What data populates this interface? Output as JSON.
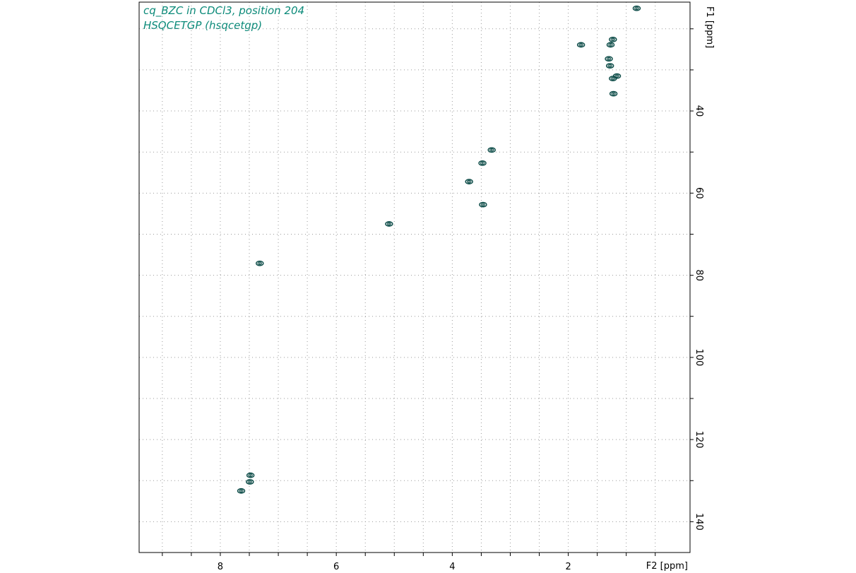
{
  "title_lines": [
    "cq_BZC in CDCl3, position 204",
    "HSQCETGP (hsqcetgp)"
  ],
  "chart_data": {
    "type": "contour",
    "x_axis": {
      "label": "F2 [ppm]",
      "range": [
        9.4,
        -0.1
      ],
      "reversed": true,
      "tick_labels": [
        8,
        6,
        4,
        2
      ],
      "minor_ticks": [
        9,
        8.5,
        8,
        7.5,
        7,
        6.5,
        6,
        5.5,
        5,
        4.5,
        4,
        3.5,
        3,
        2.5,
        2,
        1.5,
        1,
        0.5
      ]
    },
    "y_axis": {
      "label": "F1 [ppm]",
      "range": [
        13.5,
        147.5
      ],
      "reversed": true,
      "position": "right",
      "label_rotated": true,
      "tick_labels": [
        40,
        60,
        80,
        100,
        120,
        140
      ],
      "minor_ticks": [
        20,
        30,
        40,
        50,
        60,
        70,
        80,
        90,
        100,
        110,
        120,
        130,
        140
      ]
    },
    "grid": "dotted",
    "contour_color": "#0a4a46",
    "peaks": [
      {
        "f2": 0.82,
        "f1": 15.0
      },
      {
        "f2": 1.23,
        "f1": 22.6
      },
      {
        "f2": 1.78,
        "f1": 23.9
      },
      {
        "f2": 1.27,
        "f1": 23.9
      },
      {
        "f2": 1.3,
        "f1": 27.3
      },
      {
        "f2": 1.28,
        "f1": 29.0
      },
      {
        "f2": 1.16,
        "f1": 31.5
      },
      {
        "f2": 1.23,
        "f1": 32.1
      },
      {
        "f2": 1.22,
        "f1": 35.8
      },
      {
        "f2": 3.32,
        "f1": 49.5
      },
      {
        "f2": 3.48,
        "f1": 52.7
      },
      {
        "f2": 3.71,
        "f1": 57.2
      },
      {
        "f2": 3.47,
        "f1": 62.8
      },
      {
        "f2": 5.09,
        "f1": 67.5
      },
      {
        "f2": 7.32,
        "f1": 77.1
      },
      {
        "f2": 7.48,
        "f1": 128.7
      },
      {
        "f2": 7.49,
        "f1": 130.3
      },
      {
        "f2": 7.64,
        "f1": 132.5
      }
    ]
  }
}
